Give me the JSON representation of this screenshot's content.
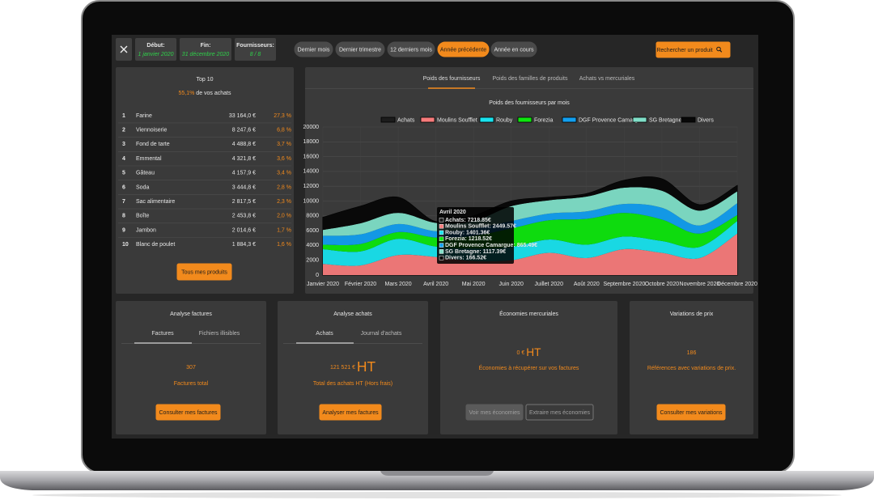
{
  "filters": [
    {
      "label": "Début:",
      "value": "1 janvier 2020"
    },
    {
      "label": "Fin:",
      "value": "31 décembre 2020"
    },
    {
      "label": "Fournisseurs:",
      "value": "8 / 8"
    }
  ],
  "periods": [
    "Dernier mois",
    "Dernier trimestre",
    "12 derniers mois",
    "Année précédente",
    "Année en cours"
  ],
  "search_button": "Rechercher un produit",
  "top10": {
    "title": "Top 10",
    "share": "55,1%",
    "share_text": "de vos achats",
    "rows": [
      [
        "1",
        "Farine",
        "33 164,0 €",
        "27,3 %"
      ],
      [
        "2",
        "Viennoiserie",
        "8 247,6 €",
        "6,8 %"
      ],
      [
        "3",
        "Fond de tarte",
        "4 488,8 €",
        "3,7 %"
      ],
      [
        "4",
        "Emmental",
        "4 321,8 €",
        "3,6 %"
      ],
      [
        "5",
        "Gâteau",
        "4 157,9 €",
        "3,4 %"
      ],
      [
        "6",
        "Soda",
        "3 444,8 €",
        "2,8 %"
      ],
      [
        "7",
        "Sac alimentaire",
        "2 817,5 €",
        "2,3 %"
      ],
      [
        "8",
        "Boîte",
        "2 453,8 €",
        "2,0 %"
      ],
      [
        "9",
        "Jambon",
        "2 014,6 €",
        "1,7 %"
      ],
      [
        "10",
        "Blanc de poulet",
        "1 884,3 €",
        "1,6 %"
      ]
    ],
    "button": "Tous mes produits"
  },
  "chart_tabs": [
    "Poids des fournisseurs",
    "Poids des familles de produits",
    "Achats vs mercuriales"
  ],
  "chart_data": {
    "type": "stacked-area",
    "title": "Poids des fournisseurs par mois",
    "categories": [
      "Janvier 2020",
      "Février 2020",
      "Mars 2020",
      "Avril 2020",
      "Mai 2020",
      "Juin 2020",
      "Juillet 2020",
      "Août 2020",
      "Septembre 2020",
      "Octobre 2020",
      "Novembre 2020",
      "Décembre 2020"
    ],
    "total_series": {
      "name": "Achats",
      "color": "#1c1c1c",
      "values": [
        7800,
        9300,
        10500,
        7218.85,
        8000,
        10000,
        10500,
        11000,
        12800,
        13000,
        9500,
        12100
      ]
    },
    "series": [
      {
        "name": "Moulins Soufflet",
        "color": "#f77b7b",
        "values": [
          1500,
          1300,
          2700,
          2449.57,
          1900,
          2000,
          3000,
          2300,
          3500,
          3000,
          2300,
          5600
        ]
      },
      {
        "name": "Rouby",
        "color": "#19e3ee",
        "values": [
          2000,
          1900,
          2200,
          1401.36,
          1700,
          1800,
          1800,
          1800,
          1700,
          1600,
          1500,
          1700
        ]
      },
      {
        "name": "Forezia",
        "color": "#0ee60e",
        "values": [
          600,
          1000,
          900,
          1218.52,
          1700,
          2500,
          2600,
          3500,
          3200,
          2900,
          1800,
          800
        ]
      },
      {
        "name": "DGF Provence Camargue",
        "color": "#139ff0",
        "values": [
          1200,
          1300,
          1100,
          865.49,
          1000,
          1000,
          900,
          1000,
          1200,
          1600,
          1100,
          1600
        ]
      },
      {
        "name": "SG Bretagne",
        "color": "#80dfc8",
        "values": [
          800,
          1500,
          1500,
          1117.39,
          1000,
          2000,
          1800,
          2000,
          2200,
          2300,
          2000,
          1600
        ]
      },
      {
        "name": "Divers",
        "color": "#080808",
        "values": [
          1700,
          2300,
          2100,
          166.52,
          700,
          700,
          400,
          400,
          1000,
          1600,
          800,
          800
        ]
      }
    ],
    "ylim": [
      0,
      20000
    ],
    "yticks": [
      0,
      2000,
      4000,
      6000,
      8000,
      10000,
      12000,
      14000,
      16000,
      18000,
      20000
    ],
    "grid": true,
    "tooltip": {
      "title": "Avril 2020",
      "lines": [
        "Achats: 7218.85€",
        "Moulins Soufflet: 2449.57€",
        "Rouby: 1401.36€",
        "Forezia: 1218.52€",
        "DGF Provence Camargue: 865.49€",
        "SG Bretagne: 1117.39€",
        "Divers: 166.52€"
      ]
    }
  },
  "cards": [
    {
      "title": "Analyse factures",
      "tabs": [
        "Factures",
        "Fichiers illisibles"
      ],
      "value": "307",
      "caption": "Factures total",
      "buttons": [
        "Consulter mes factures"
      ]
    },
    {
      "title": "Analyse achats",
      "tabs": [
        "Achats",
        "Journal d'achats"
      ],
      "value": "121 521 €",
      "unit": "HT",
      "caption": "Total des achats HT (Hors frais)",
      "buttons": [
        "Analyser mes factures"
      ]
    },
    {
      "title": "Économies mercuriales",
      "value": "0 €",
      "unit": "HT",
      "caption": "Économies à récupérer sur vos factures",
      "buttons": [
        "Voir mes économies",
        "Extraire mes économies"
      ]
    },
    {
      "title": "Variations de prix",
      "value": "186",
      "caption": "Références avec variations de prix.",
      "buttons": [
        "Consulter mes variations"
      ]
    }
  ]
}
